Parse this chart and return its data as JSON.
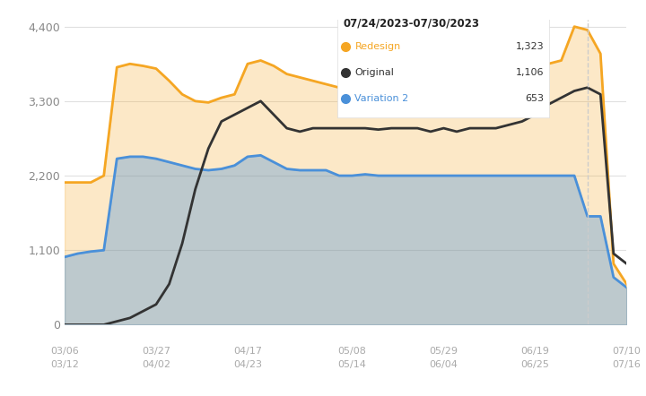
{
  "background_color": "#ffffff",
  "plot_background": "#ffffff",
  "ylim": [
    0,
    4500
  ],
  "yticks": [
    0,
    1100,
    2200,
    3300,
    4400
  ],
  "ytick_labels": [
    "0",
    "1,100",
    "2,200",
    "3,300",
    "4,400"
  ],
  "xtick_labels_top": [
    "03/06",
    "03/27",
    "04/17",
    "05/08",
    "05/29",
    "06/19",
    "07/10"
  ],
  "xtick_labels_bottom": [
    "03/12",
    "04/02",
    "04/23",
    "05/14",
    "06/04",
    "06/25",
    "07/16"
  ],
  "redesign_color": "#F5A623",
  "original_color": "#333333",
  "variation2_color": "#4A90D9",
  "redesign_fill": "#FDF3E3",
  "variation2_fill": "#E8EEF7",
  "tooltip_title": "07/24/2023-07/30/2023",
  "tooltip_redesign": "Redesign",
  "tooltip_redesign_val": "1,323",
  "tooltip_original": "Original",
  "tooltip_original_val": "1,106",
  "tooltip_variation2": "Variation 2",
  "tooltip_variation2_val": "653",
  "redesign_x": [
    0,
    1,
    2,
    3,
    4,
    5,
    6,
    7,
    8,
    9,
    10,
    11,
    12,
    13,
    14,
    15,
    16,
    17,
    18,
    19,
    20,
    21,
    22,
    23,
    24,
    25,
    26,
    27,
    28,
    29,
    30,
    31,
    32,
    33,
    34,
    35,
    36,
    37,
    38,
    39,
    40,
    41,
    42,
    43
  ],
  "redesign_y": [
    2100,
    2100,
    2100,
    2200,
    3800,
    3850,
    3820,
    3780,
    3600,
    3400,
    3300,
    3280,
    3350,
    3400,
    3850,
    3900,
    3820,
    3700,
    3650,
    3600,
    3550,
    3500,
    3500,
    3500,
    3480,
    3480,
    3500,
    3450,
    3500,
    3600,
    3350,
    3600,
    3600,
    3650,
    3700,
    3780,
    3820,
    3850,
    3900,
    4400,
    4350,
    4000,
    900,
    600
  ],
  "original_x": [
    0,
    1,
    2,
    3,
    4,
    5,
    6,
    7,
    8,
    9,
    10,
    11,
    12,
    13,
    14,
    15,
    16,
    17,
    18,
    19,
    20,
    21,
    22,
    23,
    24,
    25,
    26,
    27,
    28,
    29,
    30,
    31,
    32,
    33,
    34,
    35,
    36,
    37,
    38,
    39,
    40,
    41,
    42,
    43
  ],
  "original_y": [
    0,
    0,
    0,
    0,
    50,
    100,
    200,
    300,
    600,
    1200,
    2000,
    2600,
    3000,
    3100,
    3200,
    3300,
    3100,
    2900,
    2850,
    2900,
    2900,
    2900,
    2900,
    2900,
    2880,
    2900,
    2900,
    2900,
    2850,
    2900,
    2850,
    2900,
    2900,
    2900,
    2950,
    3000,
    3100,
    3250,
    3350,
    3450,
    3500,
    3400,
    1050,
    900
  ],
  "variation2_x": [
    0,
    1,
    2,
    3,
    4,
    5,
    6,
    7,
    8,
    9,
    10,
    11,
    12,
    13,
    14,
    15,
    16,
    17,
    18,
    19,
    20,
    21,
    22,
    23,
    24,
    25,
    26,
    27,
    28,
    29,
    30,
    31,
    32,
    33,
    34,
    35,
    36,
    37,
    38,
    39,
    40,
    41,
    42,
    43
  ],
  "variation2_y": [
    1000,
    1050,
    1080,
    1100,
    2450,
    2480,
    2480,
    2450,
    2400,
    2350,
    2300,
    2280,
    2300,
    2350,
    2480,
    2500,
    2400,
    2300,
    2280,
    2280,
    2280,
    2200,
    2200,
    2220,
    2200,
    2200,
    2200,
    2200,
    2200,
    2200,
    2200,
    2200,
    2200,
    2200,
    2200,
    2200,
    2200,
    2200,
    2200,
    2200,
    1600,
    1600,
    700,
    550
  ]
}
